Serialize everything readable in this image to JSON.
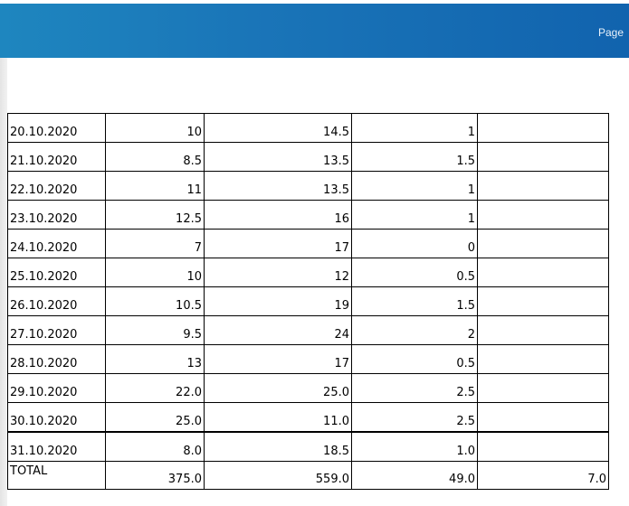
{
  "header": {
    "page_label": "Page"
  },
  "table": {
    "rows": [
      {
        "date": "20.10.2020",
        "c1": "10",
        "c2": "14.5",
        "c3": "1",
        "c4": ""
      },
      {
        "date": "21.10.2020",
        "c1": "8.5",
        "c2": "13.5",
        "c3": "1.5",
        "c4": ""
      },
      {
        "date": "22.10.2020",
        "c1": "11",
        "c2": "13.5",
        "c3": "1",
        "c4": ""
      },
      {
        "date": "23.10.2020",
        "c1": "12.5",
        "c2": "16",
        "c3": "1",
        "c4": ""
      },
      {
        "date": "24.10.2020",
        "c1": "7",
        "c2": "17",
        "c3": "0",
        "c4": ""
      },
      {
        "date": "25.10.2020",
        "c1": "10",
        "c2": "12",
        "c3": "0.5",
        "c4": ""
      },
      {
        "date": "26.10.2020",
        "c1": "10.5",
        "c2": "19",
        "c3": "1.5",
        "c4": ""
      },
      {
        "date": "27.10.2020",
        "c1": "9.5",
        "c2": "24",
        "c3": "2",
        "c4": ""
      },
      {
        "date": "28.10.2020",
        "c1": "13",
        "c2": "17",
        "c3": "0.5",
        "c4": ""
      },
      {
        "date": "29.10.2020",
        "c1": "22.0",
        "c2": "25.0",
        "c3": "2.5",
        "c4": ""
      },
      {
        "date": "30.10.2020",
        "c1": "25.0",
        "c2": "11.0",
        "c3": "2.5",
        "c4": ""
      },
      {
        "date": "31.10.2020",
        "c1": "8.0",
        "c2": "18.5",
        "c3": "1.0",
        "c4": ""
      }
    ],
    "total": {
      "label": "TOTAL",
      "c1": "375.0",
      "c2": "559.0",
      "c3": "49.0",
      "c4": "7.0"
    }
  }
}
